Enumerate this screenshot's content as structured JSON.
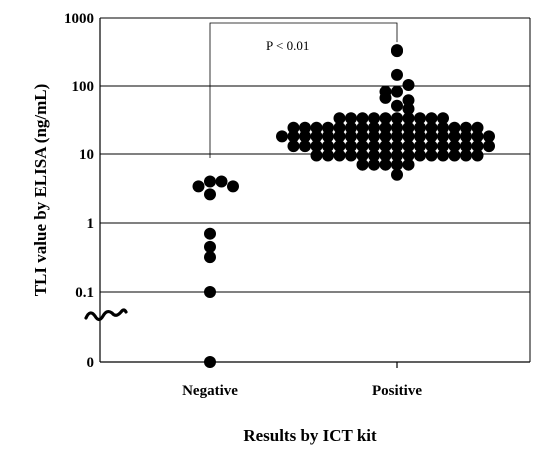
{
  "chart_data": {
    "type": "scatter",
    "title": "",
    "xlabel": "Results by ICT kit",
    "ylabel": "TLI value  by ELISA (ng/mL)",
    "y_scale": "log",
    "y_ticks": [
      "0",
      "0.1",
      "1",
      "10",
      "100",
      "1000"
    ],
    "ylim": [
      0.01,
      1000
    ],
    "grid": "horizontal",
    "axis_break": true,
    "categories": [
      "Negative",
      "Positive"
    ],
    "series": [
      {
        "category": "Negative",
        "points": [
          {
            "y": 4.0,
            "dx": 0
          },
          {
            "y": 4.0,
            "dx": 1
          },
          {
            "y": 3.4,
            "dx": -1
          },
          {
            "y": 3.4,
            "dx": 2
          },
          {
            "y": 2.6,
            "dx": 0
          },
          {
            "y": 0.7,
            "dx": 0
          },
          {
            "y": 0.45,
            "dx": 0
          },
          {
            "y": 0.32,
            "dx": 0
          },
          {
            "y": 0.1,
            "dx": 0
          },
          {
            "y": 0.0,
            "dx": 0
          }
        ]
      },
      {
        "category": "Positive",
        "points": [
          {
            "y": 320,
            "dx": 0
          },
          {
            "y": 310,
            "dx": 0
          },
          {
            "y": 140,
            "dx": 0
          },
          {
            "y": 100,
            "dx": 1
          },
          {
            "y": 80,
            "dx": -1
          },
          {
            "y": 80,
            "dx": 0
          },
          {
            "y": 65,
            "dx": -1
          },
          {
            "y": 60,
            "dx": 1
          },
          {
            "y": 50,
            "dx": 0
          },
          {
            "y": 45,
            "dx": 1
          },
          {
            "y": 33,
            "dx": -5
          },
          {
            "y": 33,
            "dx": -4
          },
          {
            "y": 33,
            "dx": -3
          },
          {
            "y": 33,
            "dx": -2
          },
          {
            "y": 33,
            "dx": -1
          },
          {
            "y": 33,
            "dx": 0
          },
          {
            "y": 33,
            "dx": 1
          },
          {
            "y": 33,
            "dx": 2
          },
          {
            "y": 33,
            "dx": 3
          },
          {
            "y": 33,
            "dx": 4
          },
          {
            "y": 24,
            "dx": -9
          },
          {
            "y": 24,
            "dx": -8
          },
          {
            "y": 24,
            "dx": -7
          },
          {
            "y": 24,
            "dx": -6
          },
          {
            "y": 24,
            "dx": -5
          },
          {
            "y": 24,
            "dx": -4
          },
          {
            "y": 24,
            "dx": -3
          },
          {
            "y": 24,
            "dx": -2
          },
          {
            "y": 24,
            "dx": -1
          },
          {
            "y": 24,
            "dx": 0
          },
          {
            "y": 24,
            "dx": 1
          },
          {
            "y": 24,
            "dx": 2
          },
          {
            "y": 24,
            "dx": 3
          },
          {
            "y": 24,
            "dx": 4
          },
          {
            "y": 24,
            "dx": 5
          },
          {
            "y": 24,
            "dx": 6
          },
          {
            "y": 24,
            "dx": 7
          },
          {
            "y": 18,
            "dx": -10
          },
          {
            "y": 18,
            "dx": -9
          },
          {
            "y": 18,
            "dx": -8
          },
          {
            "y": 18,
            "dx": -7
          },
          {
            "y": 18,
            "dx": -6
          },
          {
            "y": 18,
            "dx": -5
          },
          {
            "y": 18,
            "dx": -4
          },
          {
            "y": 18,
            "dx": -3
          },
          {
            "y": 18,
            "dx": -2
          },
          {
            "y": 18,
            "dx": -1
          },
          {
            "y": 18,
            "dx": 0
          },
          {
            "y": 18,
            "dx": 1
          },
          {
            "y": 18,
            "dx": 2
          },
          {
            "y": 18,
            "dx": 3
          },
          {
            "y": 18,
            "dx": 4
          },
          {
            "y": 18,
            "dx": 5
          },
          {
            "y": 18,
            "dx": 6
          },
          {
            "y": 18,
            "dx": 7
          },
          {
            "y": 18,
            "dx": 8
          },
          {
            "y": 13,
            "dx": -9
          },
          {
            "y": 13,
            "dx": -8
          },
          {
            "y": 13,
            "dx": -7
          },
          {
            "y": 13,
            "dx": -6
          },
          {
            "y": 13,
            "dx": -5
          },
          {
            "y": 13,
            "dx": -4
          },
          {
            "y": 13,
            "dx": -3
          },
          {
            "y": 13,
            "dx": -2
          },
          {
            "y": 13,
            "dx": -1
          },
          {
            "y": 13,
            "dx": 0
          },
          {
            "y": 13,
            "dx": 1
          },
          {
            "y": 13,
            "dx": 2
          },
          {
            "y": 13,
            "dx": 3
          },
          {
            "y": 13,
            "dx": 4
          },
          {
            "y": 13,
            "dx": 5
          },
          {
            "y": 13,
            "dx": 6
          },
          {
            "y": 13,
            "dx": 7
          },
          {
            "y": 13,
            "dx": 8
          },
          {
            "y": 9.5,
            "dx": -7
          },
          {
            "y": 9.5,
            "dx": -6
          },
          {
            "y": 9.5,
            "dx": -5
          },
          {
            "y": 9.5,
            "dx": -4
          },
          {
            "y": 9.5,
            "dx": -3
          },
          {
            "y": 9.5,
            "dx": -2
          },
          {
            "y": 9.5,
            "dx": -1
          },
          {
            "y": 9.5,
            "dx": 0
          },
          {
            "y": 9.5,
            "dx": 1
          },
          {
            "y": 9.5,
            "dx": 2
          },
          {
            "y": 9.5,
            "dx": 3
          },
          {
            "y": 9.5,
            "dx": 4
          },
          {
            "y": 9.5,
            "dx": 5
          },
          {
            "y": 9.5,
            "dx": 6
          },
          {
            "y": 9.5,
            "dx": 7
          },
          {
            "y": 7,
            "dx": -3
          },
          {
            "y": 7,
            "dx": -2
          },
          {
            "y": 7,
            "dx": -1
          },
          {
            "y": 7,
            "dx": 0
          },
          {
            "y": 7,
            "dx": 1
          },
          {
            "y": 5,
            "dx": 0
          }
        ]
      }
    ],
    "annotations": [
      {
        "text": "P < 0.01",
        "type": "bracket",
        "between": [
          "Negative",
          "Positive"
        ]
      }
    ]
  }
}
